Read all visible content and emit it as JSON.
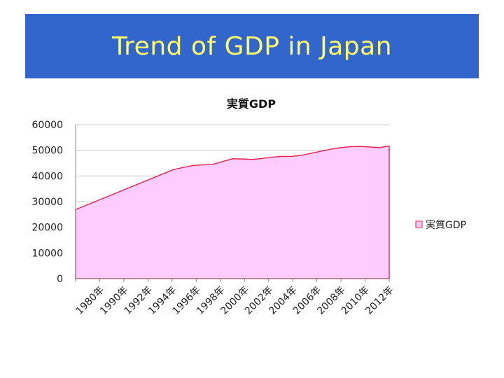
{
  "slide": {
    "title": "Trend of GDP in Japan",
    "banner_color": "#3366cc",
    "title_color": "#ffff66"
  },
  "chart_data": {
    "type": "area",
    "title": "実質GDP",
    "categories": [
      "1980年",
      "1990年",
      "1992年",
      "1994年",
      "1996年",
      "1998年",
      "2000年",
      "2002年",
      "2004年",
      "2006年",
      "2008年",
      "2010年",
      "2012年"
    ],
    "x": [
      1980,
      1990,
      1991,
      1992,
      1993,
      1994,
      1995,
      1996,
      1997,
      1998,
      1999,
      2000,
      2001,
      2002,
      2003,
      2004,
      2005,
      2006,
      2007,
      2008,
      2009,
      2010,
      2011,
      2012
    ],
    "series": [
      {
        "name": "実質GDP",
        "values": [
          26900,
          42500,
          43300,
          44100,
          44300,
          44500,
          45600,
          46700,
          46600,
          46400,
          46800,
          47300,
          47600,
          47600,
          48000,
          48800,
          49600,
          50400,
          51000,
          51400,
          51500,
          51300,
          51000,
          51700
        ],
        "fill_color": "#ffccff",
        "line_color": "#e8204a"
      }
    ],
    "ylim": [
      0,
      60000
    ],
    "yticks": [
      0,
      10000,
      20000,
      30000,
      40000,
      50000,
      60000
    ],
    "grid": true,
    "legend_position": "right",
    "xlabel": "",
    "ylabel": ""
  }
}
